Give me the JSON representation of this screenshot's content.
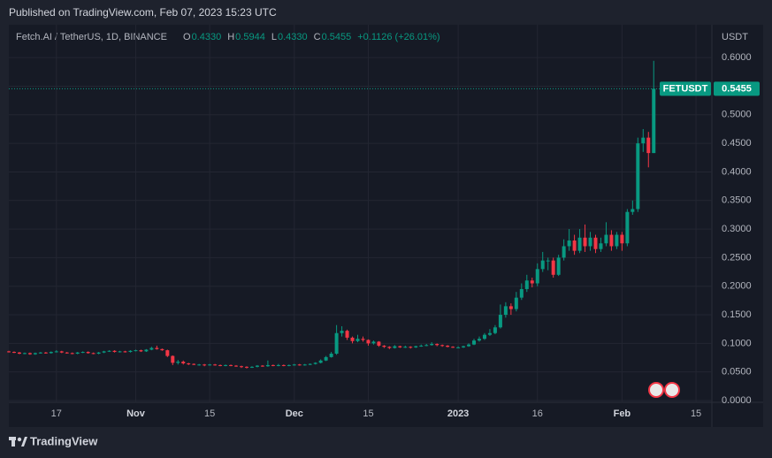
{
  "published": "Published on TradingView.com, Feb 07, 2023 15:23 UTC",
  "brand": "TradingView",
  "chart_data": {
    "type": "candlestick",
    "title": "Fetch.AI / TetherUS, 1D, BINANCE",
    "ohlc_labels": [
      {
        "key": "O",
        "text": "0.4330"
      },
      {
        "key": "H",
        "text": "0.5944"
      },
      {
        "key": "L",
        "text": "0.4330"
      },
      {
        "key": "C",
        "text": "0.5455"
      }
    ],
    "change": "+0.1126 (+26.01%)",
    "y_unit": "USDT",
    "symbol": "FETUSDT",
    "last_price": "0.5455",
    "up_color": "#089981",
    "down_color": "#f23645",
    "grid": true,
    "xlim": [
      "2022-10-08",
      "2023-02-18"
    ],
    "xticks": [
      {
        "value": "2022-10-17",
        "label": "17"
      },
      {
        "value": "2022-11-01",
        "label": "Nov"
      },
      {
        "value": "2022-11-15",
        "label": "15"
      },
      {
        "value": "2022-12-01",
        "label": "Dec"
      },
      {
        "value": "2022-12-15",
        "label": "15"
      },
      {
        "value": "2023-01-01",
        "label": "2023"
      },
      {
        "value": "2023-01-16",
        "label": "16"
      },
      {
        "value": "2023-02-01",
        "label": "Feb"
      },
      {
        "value": "2023-02-15",
        "label": "15"
      }
    ],
    "ylim": [
      0,
      0.6575
    ],
    "yticks": [
      {
        "value": 0,
        "label": "0.0000"
      },
      {
        "value": 0.05,
        "label": "0.0500"
      },
      {
        "value": 0.1,
        "label": "0.1000"
      },
      {
        "value": 0.15,
        "label": "0.1500"
      },
      {
        "value": 0.2,
        "label": "0.2000"
      },
      {
        "value": 0.25,
        "label": "0.2500"
      },
      {
        "value": 0.3,
        "label": "0.3000"
      },
      {
        "value": 0.35,
        "label": "0.3500"
      },
      {
        "value": 0.4,
        "label": "0.4000"
      },
      {
        "value": 0.45,
        "label": "0.4500"
      },
      {
        "value": 0.5,
        "label": "0.5000"
      },
      {
        "value": 0.55,
        "label": "0.5500"
      },
      {
        "value": 0.6,
        "label": "0.6000"
      }
    ],
    "x": [
      "2022-10-08",
      "2022-10-09",
      "2022-10-10",
      "2022-10-11",
      "2022-10-12",
      "2022-10-13",
      "2022-10-14",
      "2022-10-15",
      "2022-10-16",
      "2022-10-17",
      "2022-10-18",
      "2022-10-19",
      "2022-10-20",
      "2022-10-21",
      "2022-10-22",
      "2022-10-23",
      "2022-10-24",
      "2022-10-25",
      "2022-10-26",
      "2022-10-27",
      "2022-10-28",
      "2022-10-29",
      "2022-10-30",
      "2022-10-31",
      "2022-11-01",
      "2022-11-02",
      "2022-11-03",
      "2022-11-04",
      "2022-11-05",
      "2022-11-06",
      "2022-11-07",
      "2022-11-08",
      "2022-11-09",
      "2022-11-10",
      "2022-11-11",
      "2022-11-12",
      "2022-11-13",
      "2022-11-14",
      "2022-11-15",
      "2022-11-16",
      "2022-11-17",
      "2022-11-18",
      "2022-11-19",
      "2022-11-20",
      "2022-11-21",
      "2022-11-22",
      "2022-11-23",
      "2022-11-24",
      "2022-11-25",
      "2022-11-26",
      "2022-11-27",
      "2022-11-28",
      "2022-11-29",
      "2022-11-30",
      "2022-12-01",
      "2022-12-02",
      "2022-12-03",
      "2022-12-04",
      "2022-12-05",
      "2022-12-06",
      "2022-12-07",
      "2022-12-08",
      "2022-12-09",
      "2022-12-10",
      "2022-12-11",
      "2022-12-12",
      "2022-12-13",
      "2022-12-14",
      "2022-12-15",
      "2022-12-16",
      "2022-12-17",
      "2022-12-18",
      "2022-12-19",
      "2022-12-20",
      "2022-12-21",
      "2022-12-22",
      "2022-12-23",
      "2022-12-24",
      "2022-12-25",
      "2022-12-26",
      "2022-12-27",
      "2022-12-28",
      "2022-12-29",
      "2022-12-30",
      "2022-12-31",
      "2023-01-01",
      "2023-01-02",
      "2023-01-03",
      "2023-01-04",
      "2023-01-05",
      "2023-01-06",
      "2023-01-07",
      "2023-01-08",
      "2023-01-09",
      "2023-01-10",
      "2023-01-11",
      "2023-01-12",
      "2023-01-13",
      "2023-01-14",
      "2023-01-15",
      "2023-01-16",
      "2023-01-17",
      "2023-01-18",
      "2023-01-19",
      "2023-01-20",
      "2023-01-21",
      "2023-01-22",
      "2023-01-23",
      "2023-01-24",
      "2023-01-25",
      "2023-01-26",
      "2023-01-27",
      "2023-01-28",
      "2023-01-29",
      "2023-01-30",
      "2023-01-31",
      "2023-02-01",
      "2023-02-02",
      "2023-02-03",
      "2023-02-04",
      "2023-02-05",
      "2023-02-06",
      "2023-02-07"
    ],
    "open": [
      0.086,
      0.085,
      0.084,
      0.082,
      0.083,
      0.081,
      0.083,
      0.084,
      0.083,
      0.085,
      0.086,
      0.084,
      0.083,
      0.082,
      0.084,
      0.085,
      0.083,
      0.082,
      0.084,
      0.086,
      0.087,
      0.085,
      0.086,
      0.085,
      0.087,
      0.088,
      0.086,
      0.089,
      0.092,
      0.09,
      0.088,
      0.078,
      0.066,
      0.068,
      0.065,
      0.064,
      0.063,
      0.063,
      0.062,
      0.063,
      0.062,
      0.061,
      0.062,
      0.061,
      0.06,
      0.059,
      0.058,
      0.059,
      0.061,
      0.06,
      0.062,
      0.061,
      0.062,
      0.061,
      0.062,
      0.063,
      0.062,
      0.063,
      0.064,
      0.066,
      0.07,
      0.076,
      0.082,
      0.118,
      0.122,
      0.11,
      0.104,
      0.108,
      0.106,
      0.1,
      0.103,
      0.096,
      0.094,
      0.092,
      0.095,
      0.093,
      0.094,
      0.093,
      0.095,
      0.096,
      0.097,
      0.099,
      0.097,
      0.096,
      0.094,
      0.093,
      0.093,
      0.095,
      0.098,
      0.105,
      0.108,
      0.115,
      0.118,
      0.128,
      0.15,
      0.165,
      0.16,
      0.18,
      0.195,
      0.21,
      0.205,
      0.23,
      0.245,
      0.245,
      0.22,
      0.25,
      0.27,
      0.28,
      0.262,
      0.285,
      0.27,
      0.285,
      0.265,
      0.275,
      0.29,
      0.27,
      0.29,
      0.275,
      0.33,
      0.335,
      0.45,
      0.46,
      0.433
    ],
    "high": [
      0.087,
      0.086,
      0.085,
      0.084,
      0.084,
      0.084,
      0.085,
      0.085,
      0.086,
      0.088,
      0.087,
      0.085,
      0.084,
      0.085,
      0.086,
      0.086,
      0.084,
      0.085,
      0.087,
      0.088,
      0.088,
      0.087,
      0.087,
      0.088,
      0.089,
      0.089,
      0.09,
      0.094,
      0.096,
      0.091,
      0.089,
      0.079,
      0.071,
      0.07,
      0.066,
      0.065,
      0.064,
      0.064,
      0.064,
      0.064,
      0.063,
      0.063,
      0.063,
      0.062,
      0.061,
      0.06,
      0.06,
      0.062,
      0.062,
      0.07,
      0.063,
      0.064,
      0.063,
      0.063,
      0.064,
      0.064,
      0.064,
      0.065,
      0.067,
      0.072,
      0.078,
      0.085,
      0.132,
      0.13,
      0.124,
      0.112,
      0.115,
      0.112,
      0.107,
      0.105,
      0.104,
      0.097,
      0.095,
      0.097,
      0.096,
      0.096,
      0.095,
      0.096,
      0.098,
      0.099,
      0.102,
      0.1,
      0.098,
      0.097,
      0.095,
      0.095,
      0.096,
      0.1,
      0.108,
      0.112,
      0.118,
      0.125,
      0.132,
      0.168,
      0.172,
      0.17,
      0.19,
      0.205,
      0.22,
      0.215,
      0.24,
      0.26,
      0.25,
      0.25,
      0.255,
      0.282,
      0.3,
      0.29,
      0.3,
      0.308,
      0.295,
      0.29,
      0.285,
      0.312,
      0.298,
      0.295,
      0.295,
      0.335,
      0.35,
      0.46,
      0.475,
      0.47,
      0.5944
    ],
    "low": [
      0.084,
      0.083,
      0.081,
      0.081,
      0.08,
      0.08,
      0.082,
      0.082,
      0.082,
      0.084,
      0.083,
      0.082,
      0.081,
      0.081,
      0.083,
      0.082,
      0.081,
      0.081,
      0.083,
      0.085,
      0.084,
      0.084,
      0.084,
      0.084,
      0.086,
      0.085,
      0.085,
      0.088,
      0.089,
      0.087,
      0.076,
      0.062,
      0.063,
      0.063,
      0.062,
      0.062,
      0.061,
      0.06,
      0.061,
      0.061,
      0.06,
      0.06,
      0.06,
      0.059,
      0.057,
      0.056,
      0.057,
      0.058,
      0.059,
      0.059,
      0.06,
      0.06,
      0.06,
      0.06,
      0.061,
      0.061,
      0.061,
      0.062,
      0.063,
      0.065,
      0.069,
      0.075,
      0.08,
      0.112,
      0.106,
      0.1,
      0.102,
      0.103,
      0.096,
      0.098,
      0.094,
      0.092,
      0.09,
      0.091,
      0.092,
      0.092,
      0.091,
      0.092,
      0.094,
      0.095,
      0.096,
      0.095,
      0.094,
      0.093,
      0.092,
      0.092,
      0.092,
      0.094,
      0.097,
      0.103,
      0.106,
      0.113,
      0.116,
      0.126,
      0.145,
      0.15,
      0.156,
      0.176,
      0.19,
      0.198,
      0.2,
      0.225,
      0.228,
      0.215,
      0.218,
      0.245,
      0.262,
      0.255,
      0.258,
      0.26,
      0.262,
      0.258,
      0.26,
      0.27,
      0.262,
      0.265,
      0.262,
      0.27,
      0.325,
      0.33,
      0.435,
      0.408,
      0.433
    ],
    "close": [
      0.085,
      0.084,
      0.082,
      0.083,
      0.081,
      0.083,
      0.084,
      0.083,
      0.085,
      0.086,
      0.084,
      0.083,
      0.082,
      0.084,
      0.085,
      0.083,
      0.082,
      0.084,
      0.086,
      0.087,
      0.085,
      0.086,
      0.085,
      0.087,
      0.088,
      0.086,
      0.089,
      0.092,
      0.09,
      0.088,
      0.078,
      0.066,
      0.068,
      0.065,
      0.064,
      0.063,
      0.063,
      0.062,
      0.063,
      0.062,
      0.061,
      0.062,
      0.061,
      0.06,
      0.059,
      0.058,
      0.059,
      0.061,
      0.06,
      0.062,
      0.061,
      0.062,
      0.061,
      0.062,
      0.063,
      0.062,
      0.063,
      0.064,
      0.066,
      0.07,
      0.076,
      0.082,
      0.118,
      0.122,
      0.11,
      0.104,
      0.108,
      0.106,
      0.1,
      0.103,
      0.096,
      0.094,
      0.092,
      0.095,
      0.093,
      0.094,
      0.093,
      0.095,
      0.096,
      0.097,
      0.099,
      0.097,
      0.096,
      0.094,
      0.093,
      0.093,
      0.095,
      0.098,
      0.105,
      0.108,
      0.115,
      0.118,
      0.128,
      0.15,
      0.165,
      0.16,
      0.18,
      0.195,
      0.21,
      0.205,
      0.23,
      0.245,
      0.245,
      0.22,
      0.25,
      0.27,
      0.28,
      0.262,
      0.285,
      0.27,
      0.285,
      0.265,
      0.275,
      0.29,
      0.27,
      0.29,
      0.275,
      0.33,
      0.335,
      0.45,
      0.46,
      0.433,
      0.5455
    ]
  }
}
